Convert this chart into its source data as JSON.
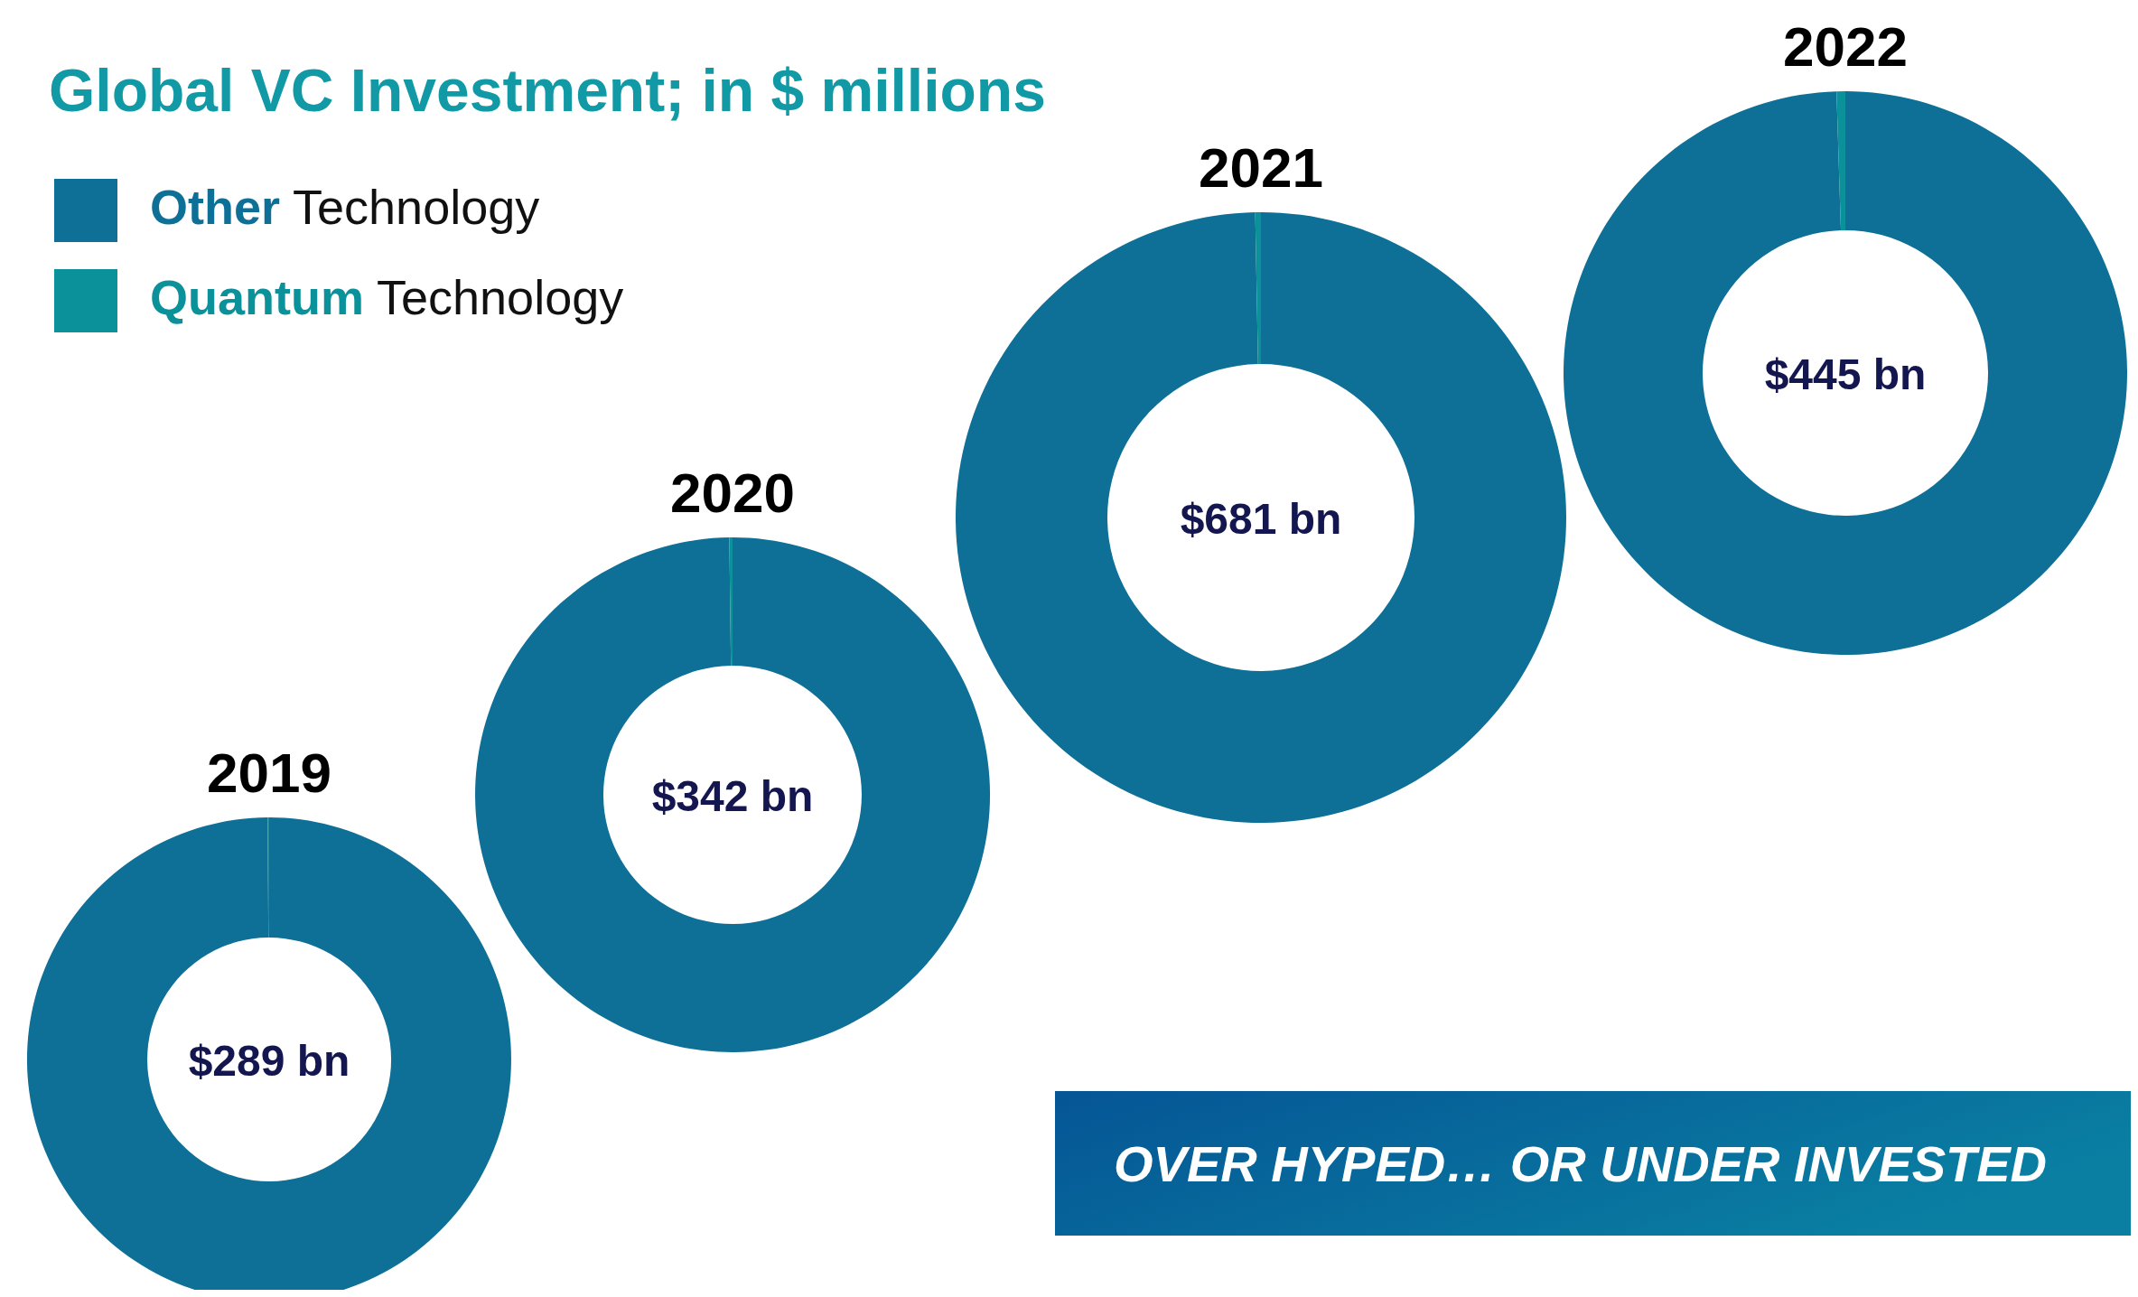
{
  "chart_data": [
    {
      "type": "other",
      "title": "Global VC Investment; in $ millions",
      "annotations": [
        "OVER HYPED… OR UNDER INVESTED"
      ]
    },
    {
      "type": "donut",
      "title": "2019",
      "categories": [
        "Other Technology",
        "Quantum Technology"
      ],
      "values": [
        99.9,
        0.1
      ],
      "colors": [
        "#0e6f97",
        "#0a9199"
      ],
      "annotations": [
        "$289 bn"
      ],
      "legend": "top"
    },
    {
      "type": "donut",
      "title": "2020",
      "categories": [
        null,
        null
      ],
      "values": [
        99.8,
        0.2
      ],
      "colors": [
        "#0e6f97",
        "#0a9199"
      ],
      "annotations": [
        "$342 bn"
      ]
    },
    {
      "type": "donut",
      "title": "2021",
      "categories": [
        null,
        null
      ],
      "values": [
        99.7,
        0.3
      ],
      "colors": [
        "#0e6f97",
        "#0a9199"
      ],
      "annotations": [
        "$681 bn"
      ]
    },
    {
      "type": "donut",
      "title": "2022",
      "categories": [
        null,
        null
      ],
      "values": [
        99.5,
        0.5
      ],
      "colors": [
        "#0e6f97",
        "#0a9199"
      ],
      "annotations": [
        "$445 bn"
      ]
    }
  ]
}
